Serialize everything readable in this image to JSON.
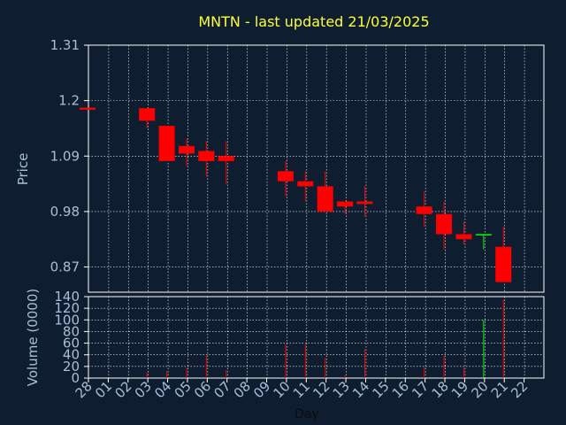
{
  "chart_data": [
    {
      "type": "candlestick",
      "title": "MNTN - last updated 21/03/2025",
      "ylabel": "Price",
      "ylim": [
        0.82,
        1.31
      ],
      "yticks": [
        "1.31",
        "1.2",
        "1.09",
        "0.98",
        "0.87"
      ],
      "ytick_values": [
        1.31,
        1.2,
        1.09,
        0.98,
        0.87
      ],
      "grid": true,
      "up_color": "#00ff00",
      "down_color": "#ff0000",
      "candles": [
        {
          "day": "28",
          "open": 1.186,
          "close": 1.182,
          "high": 1.186,
          "low": 1.182
        },
        {
          "day": "03",
          "open": 1.185,
          "close": 1.16,
          "high": 1.185,
          "low": 1.145
        },
        {
          "day": "04",
          "open": 1.15,
          "close": 1.08,
          "high": 1.15,
          "low": 1.08
        },
        {
          "day": "05",
          "open": 1.11,
          "close": 1.095,
          "high": 1.125,
          "low": 1.07
        },
        {
          "day": "06",
          "open": 1.1,
          "close": 1.08,
          "high": 1.12,
          "low": 1.05
        },
        {
          "day": "07",
          "open": 1.09,
          "close": 1.08,
          "high": 1.12,
          "low": 1.035
        },
        {
          "day": "10",
          "open": 1.06,
          "close": 1.04,
          "high": 1.08,
          "low": 1.01
        },
        {
          "day": "11",
          "open": 1.04,
          "close": 1.03,
          "high": 1.06,
          "low": 1.0
        },
        {
          "day": "12",
          "open": 1.03,
          "close": 0.98,
          "high": 1.06,
          "low": 0.98
        },
        {
          "day": "13",
          "open": 1.0,
          "close": 0.99,
          "high": 1.0,
          "low": 0.975
        },
        {
          "day": "14",
          "open": 1.0,
          "close": 0.995,
          "high": 1.03,
          "low": 0.97
        },
        {
          "day": "17",
          "open": 0.99,
          "close": 0.975,
          "high": 1.02,
          "low": 0.95
        },
        {
          "day": "18",
          "open": 0.975,
          "close": 0.935,
          "high": 1.0,
          "low": 0.905
        },
        {
          "day": "19",
          "open": 0.935,
          "close": 0.925,
          "high": 0.96,
          "low": 0.915
        },
        {
          "day": "20",
          "open": 0.932,
          "close": 0.934,
          "high": 0.934,
          "low": 0.905
        },
        {
          "day": "21",
          "open": 0.91,
          "close": 0.84,
          "high": 0.95,
          "low": 0.84
        }
      ]
    },
    {
      "type": "bar",
      "ylabel": "Volume (0000)",
      "xlabel": "Day",
      "ylim": [
        0,
        140
      ],
      "yticks": [
        "140",
        "120",
        "100",
        "80",
        "60",
        "40",
        "20",
        "0"
      ],
      "ytick_values": [
        140,
        120,
        100,
        80,
        60,
        40,
        20,
        0
      ],
      "categories": [
        "28",
        "01",
        "02",
        "03",
        "04",
        "05",
        "06",
        "07",
        "08",
        "09",
        "10",
        "11",
        "12",
        "13",
        "14",
        "15",
        "16",
        "17",
        "18",
        "19",
        "20",
        "21",
        "22"
      ],
      "values": [
        1,
        0,
        0,
        10,
        12,
        18,
        38,
        14,
        0,
        0,
        58,
        58,
        35,
        5,
        50,
        0,
        0,
        18,
        38,
        18,
        100,
        135,
        0
      ],
      "colors": [
        "red",
        "red",
        "red",
        "red",
        "red",
        "red",
        "red",
        "red",
        "red",
        "red",
        "red",
        "red",
        "red",
        "red",
        "red",
        "red",
        "red",
        "red",
        "red",
        "red",
        "green",
        "red",
        "red"
      ]
    }
  ]
}
